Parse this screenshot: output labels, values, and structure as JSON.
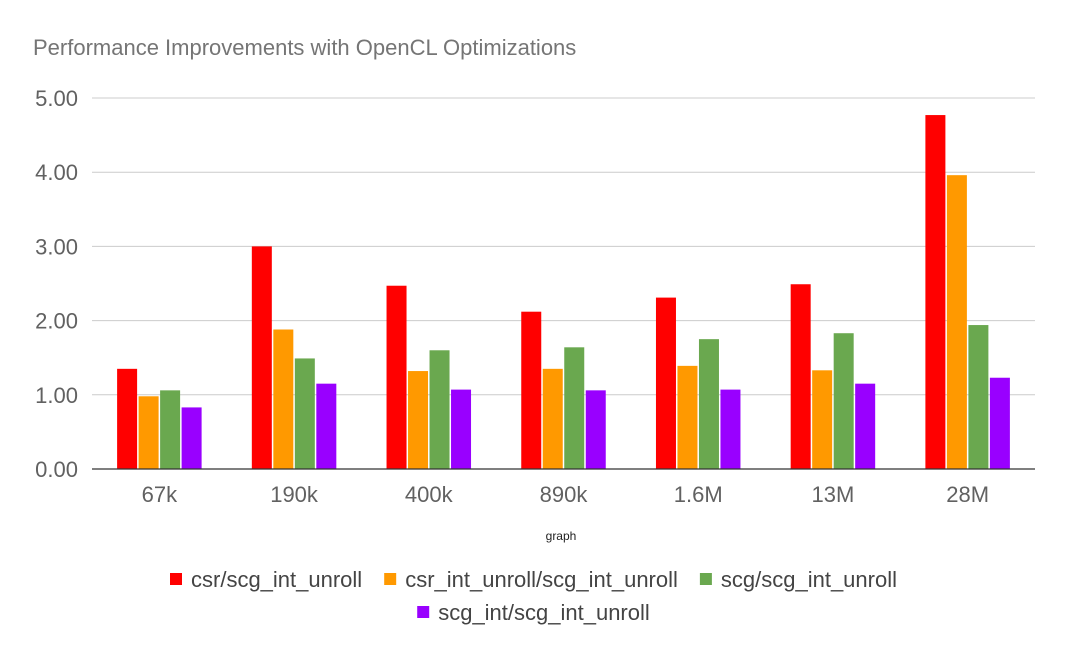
{
  "chart_data": {
    "type": "bar",
    "title": "Performance Improvements with OpenCL Optimizations",
    "xlabel": "graph",
    "ylabel": "",
    "ylim": [
      0,
      5
    ],
    "yticks": [
      "0.00",
      "1.00",
      "2.00",
      "3.00",
      "4.00",
      "5.00"
    ],
    "grid": true,
    "legend_position": "bottom",
    "categories": [
      "67k",
      "190k",
      "400k",
      "890k",
      "1.6M",
      "13M",
      "28M"
    ],
    "series": [
      {
        "name": "csr/scg_int_unroll",
        "color": "#ff0000",
        "values": [
          1.35,
          3.0,
          2.47,
          2.12,
          2.31,
          2.49,
          4.77
        ]
      },
      {
        "name": "csr_int_unroll/scg_int_unroll",
        "color": "#ff9900",
        "values": [
          0.98,
          1.88,
          1.32,
          1.35,
          1.39,
          1.33,
          3.96
        ]
      },
      {
        "name": "scg/scg_int_unroll",
        "color": "#6aa84f",
        "values": [
          1.06,
          1.49,
          1.6,
          1.64,
          1.75,
          1.83,
          1.94
        ]
      },
      {
        "name": "scg_int/scg_int_unroll",
        "color": "#9900ff",
        "values": [
          0.83,
          1.15,
          1.07,
          1.06,
          1.07,
          1.15,
          1.23
        ]
      }
    ]
  }
}
